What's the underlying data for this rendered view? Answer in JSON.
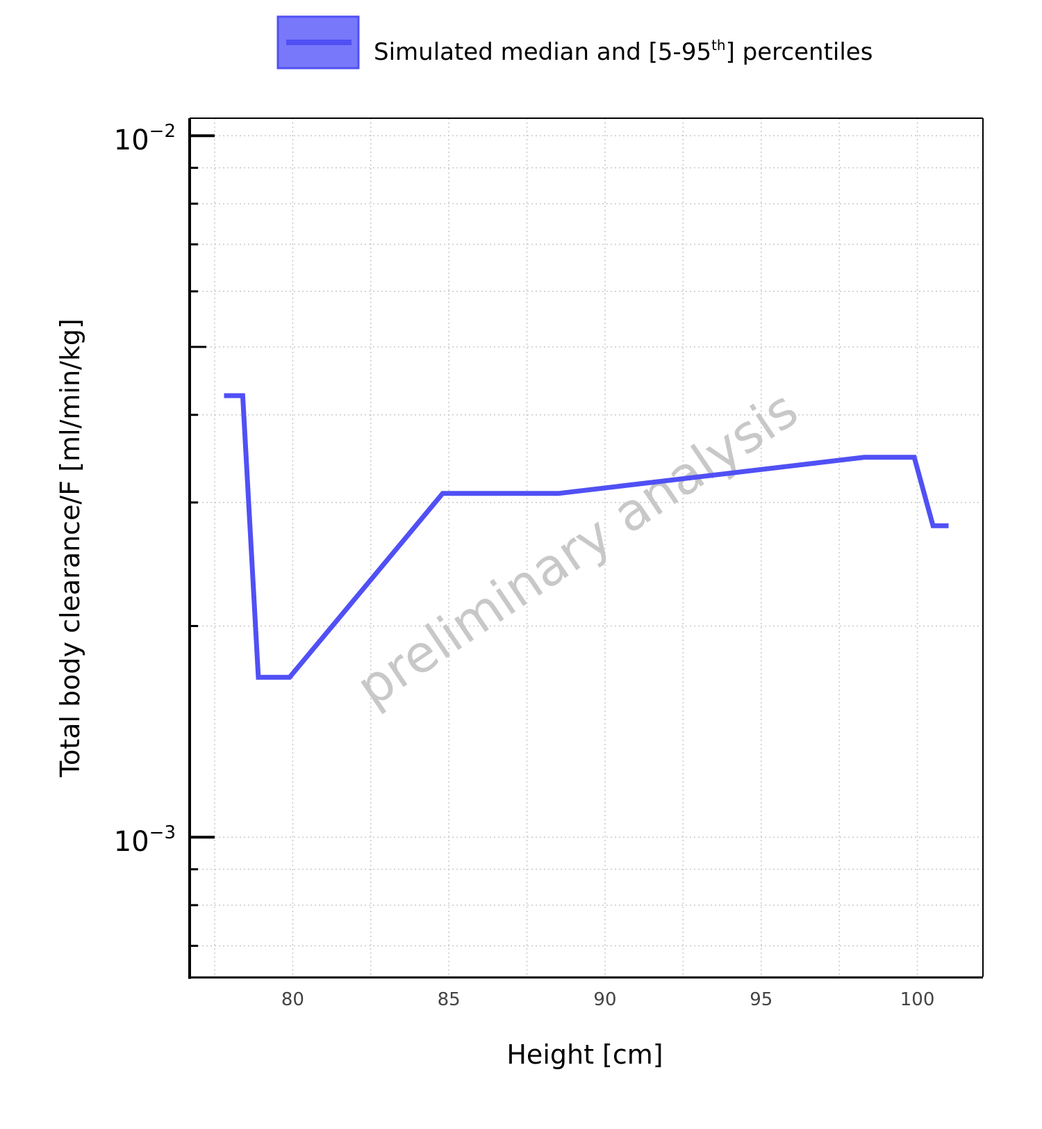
{
  "chart_data": {
    "type": "line",
    "xlabel": "Height [cm]",
    "ylabel": "Total body clearance/F [ml/min/kg]",
    "xlim": [
      76.7,
      102.1
    ],
    "ylim_log10": [
      -3.2,
      -1.975
    ],
    "y_scale": "log",
    "x_ticks": [
      80,
      85,
      90,
      95,
      100
    ],
    "x_tick_labels": [
      "80",
      "85",
      "90",
      "95",
      "100"
    ],
    "y_ticks": [
      {
        "value": 0.01,
        "base": "10",
        "exponent": "−2"
      },
      {
        "value": 0.001,
        "base": "10",
        "exponent": "−3"
      }
    ],
    "grid": true,
    "legend_position": "top-center",
    "legend": {
      "label_before": "Simulated median and [5-95",
      "label_sup": "th",
      "label_after": "] percentiles"
    },
    "watermark": "preliminary analysis",
    "series": [
      {
        "color": "#5050f5",
        "x": [
          77.8,
          78.4,
          78.9,
          79.9,
          84.8,
          88.5,
          98.3,
          99.9,
          100.5,
          101.0
        ],
        "y": [
          0.00426,
          0.00426,
          0.00169,
          0.00169,
          0.00309,
          0.00309,
          0.00348,
          0.00348,
          0.00278,
          0.00278
        ]
      }
    ]
  }
}
